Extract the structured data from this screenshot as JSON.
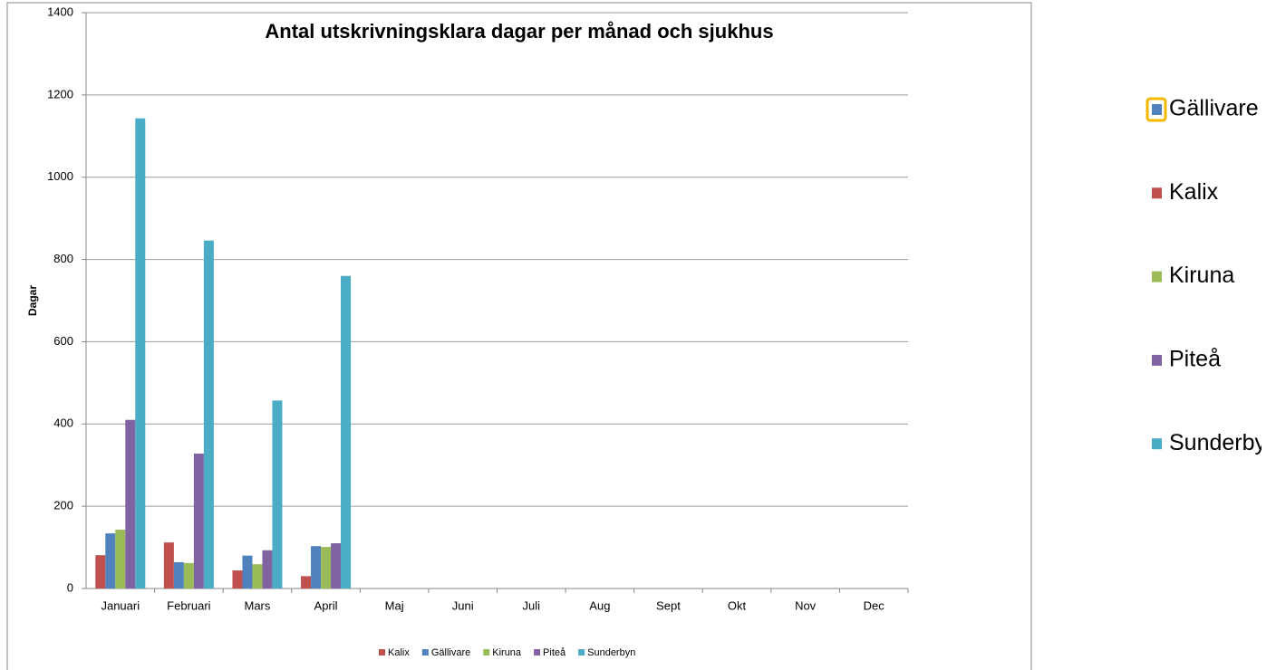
{
  "chart_data": {
    "type": "bar",
    "title": "Antal utskrivningsklara dagar per månad och sjukhus",
    "y_label": "Dagar",
    "categories": [
      "Januari",
      "Februari",
      "Mars",
      "April",
      "Maj",
      "Juni",
      "Juli",
      "Aug",
      "Sept",
      "Okt",
      "Nov",
      "Dec"
    ],
    "series": [
      {
        "name": "Kalix",
        "color": "#c0504d",
        "values": [
          81,
          112,
          44,
          30,
          null,
          null,
          null,
          null,
          null,
          null,
          null,
          null
        ]
      },
      {
        "name": "Gällivare",
        "color": "#4f81bd",
        "values": [
          134,
          64,
          80,
          103,
          null,
          null,
          null,
          null,
          null,
          null,
          null,
          null
        ]
      },
      {
        "name": "Kiruna",
        "color": "#9bbb59",
        "values": [
          143,
          62,
          59,
          101,
          null,
          null,
          null,
          null,
          null,
          null,
          null,
          null
        ]
      },
      {
        "name": "Piteå",
        "color": "#8064a2",
        "values": [
          410,
          328,
          93,
          110,
          null,
          null,
          null,
          null,
          null,
          null,
          null,
          null
        ]
      },
      {
        "name": "Sunderbyn",
        "color": "#4bacc6",
        "values": [
          1143,
          846,
          457,
          760,
          null,
          null,
          null,
          null,
          null,
          null,
          null,
          null
        ]
      }
    ],
    "ylim": [
      0,
      1400
    ],
    "yticks": [
      0,
      200,
      400,
      600,
      800,
      1000,
      1200,
      1400
    ],
    "grid": true
  }
}
